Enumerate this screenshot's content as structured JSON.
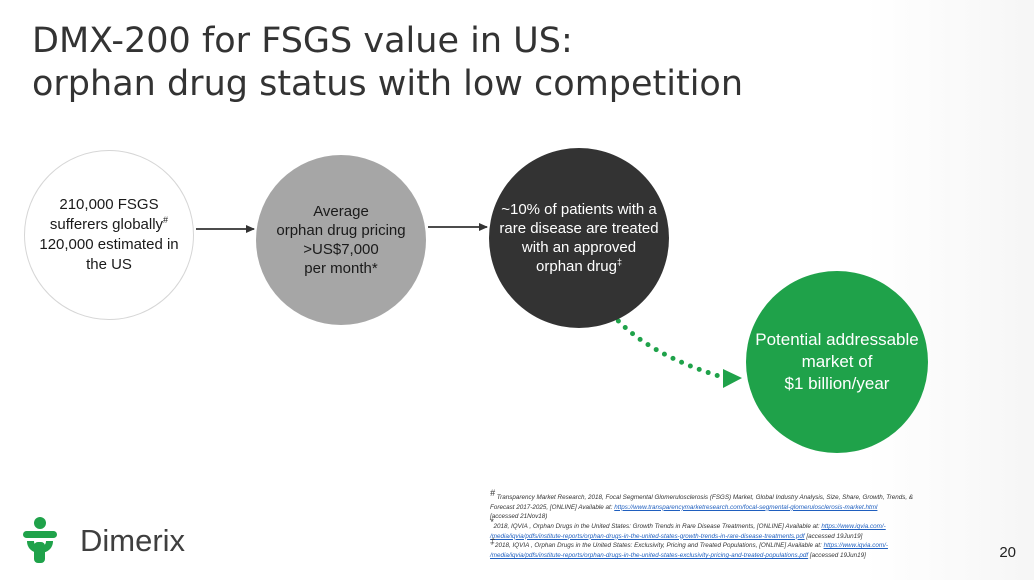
{
  "title": {
    "line1": "DMX-200 for FSGS value in US:",
    "line2": "orphan drug status with low competition"
  },
  "flow": {
    "step1": {
      "before": "210,000 FSGS sufferers globally",
      "mark": "#",
      "after": "120,000 estimated in the US"
    },
    "step2": {
      "line1": "Average",
      "line2": "orphan drug pricing",
      "line3": ">US$7,000",
      "line4": "per month*"
    },
    "step3": {
      "text": "~10% of patients with a rare disease are treated with an approved orphan drug",
      "mark": "‡"
    },
    "step4": {
      "line1": "Potential addressable",
      "line2": "market of",
      "line3": "$1 billion/year"
    }
  },
  "colors": {
    "grey_circle": "#a6a6a6",
    "dark_circle": "#333333",
    "green_circle": "#1fa24a",
    "arrow": "#333333",
    "dotted_arrow": "#1fa24a"
  },
  "logo": {
    "icon": "person-plus-icon",
    "wordmark": "Dimerix"
  },
  "references": {
    "r1_mark": "#",
    "r1_text": " Transparency Market Research, 2018, Focal Segmental Glomerulosclerosis (FSGS) Market, Global Industry Analysis, Size, Share, Growth, Trends, &",
    "r1_text2": "Forecast 2017-2025, [ONLINE] Available at: ",
    "r1_link": "https://www.transparencymarketresearch.com/focal-segmental-glomerulosclerosis-market.html",
    "r1_accessed": "[accessed 21Nov18)",
    "r2_mark": "*",
    "r2_text": "2018, IQVIA , Orphan Drugs in the United States: Growth Trends in Rare Disease Treatments, [ONLINE] Available at: ",
    "r2_link1": "https://www.iqvia.com/-",
    "r2_link2": "/media/iqvia/pdfs/institute-reports/orphan-drugs-in-the-united-states-growth-trends-in-rare-disease-treatments.pdf",
    "r2_accessed": " [accessed 19Jun19]",
    "r3_mark": "‡",
    "r3_text": "2018, IQVIA , Orphan Drugs in the United States: Exclusivity, Pricing and Treated Populations, [ONLINE] Available at: ",
    "r3_link1": "https://www.iqvia.com/-",
    "r3_link2": "/media/iqvia/pdfs/institute-reports/orphan-drugs-in-the-united-states-exclusivity-pricing-and-treated-populations.pdf",
    "r3_accessed": " [accessed 19Jun19]"
  },
  "page_number": "20"
}
